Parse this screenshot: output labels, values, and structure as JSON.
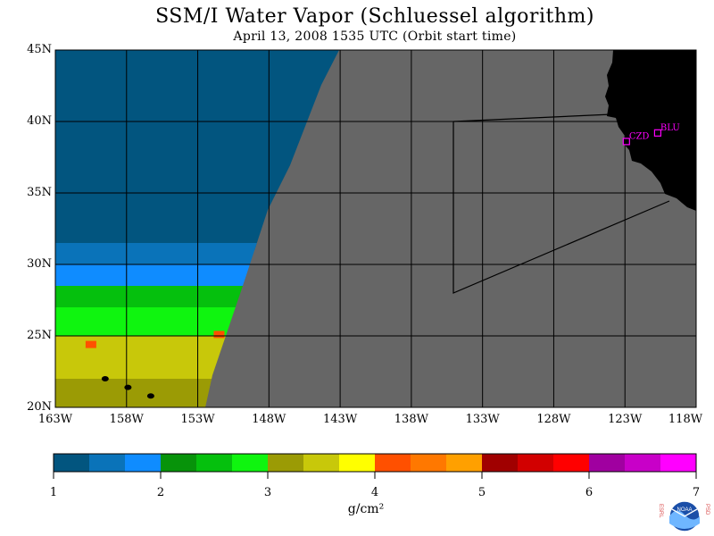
{
  "header": {
    "title": "SSM/I Water Vapor (Schluessel algorithm)",
    "subtitle": "April 13, 2008  1535 UTC  (Orbit start time)"
  },
  "map": {
    "lat_labels": [
      "45N",
      "40N",
      "35N",
      "30N",
      "25N",
      "20N"
    ],
    "lon_labels": [
      "163W",
      "158W",
      "153W",
      "148W",
      "143W",
      "138W",
      "133W",
      "128W",
      "123W",
      "118W"
    ],
    "lat_range": [
      20,
      45
    ],
    "lon_range": [
      -163,
      -118
    ],
    "colors": {
      "no_data": "#666666",
      "land": "#000000",
      "grid": "#000000",
      "station_marker": "#ff00ff"
    },
    "stations": [
      {
        "id": "CZD",
        "lat": 38.6,
        "lon": -122.9
      },
      {
        "id": "BLU",
        "lat": 39.2,
        "lon": -120.7
      }
    ]
  },
  "colorbar": {
    "unit": "g/cm²",
    "ticks": [
      "1",
      "2",
      "3",
      "4",
      "5",
      "6",
      "7"
    ],
    "range": [
      1,
      7
    ],
    "colors": [
      "#02557f",
      "#0a73b9",
      "#0f8cff",
      "#07930a",
      "#05c00d",
      "#0ff50f",
      "#9b9b05",
      "#c8c80a",
      "#ffff00",
      "#ff5000",
      "#ff7800",
      "#ffa000",
      "#a00000",
      "#d20000",
      "#ff0000",
      "#a000a0",
      "#c800c8",
      "#ff00ff"
    ]
  },
  "logo": {
    "name": "NOAA",
    "left_text": "ESRL",
    "right_text": "PSD"
  },
  "chart_data": {
    "type": "heatmap",
    "title": "SSM/I Water Vapor (Schluessel algorithm)",
    "subtitle": "April 13, 2008  1535 UTC  (Orbit start time)",
    "colorbar_label": "g/cm²",
    "value_range": [
      1,
      7
    ],
    "x_ticks": [
      "163W",
      "158W",
      "153W",
      "148W",
      "143W",
      "138W",
      "133W",
      "128W",
      "123W",
      "118W"
    ],
    "y_ticks": [
      "45N",
      "40N",
      "35N",
      "30N",
      "25N",
      "20N"
    ],
    "bands": [
      {
        "lat_range": [
          31,
          45
        ],
        "value": 1.1
      },
      {
        "lat_range": [
          30,
          31.5
        ],
        "value": 1.5
      },
      {
        "lat_range": [
          28.5,
          30
        ],
        "value": 1.8
      },
      {
        "lat_range": [
          27,
          28.5
        ],
        "value": 2.4
      },
      {
        "lat_range": [
          25,
          27
        ],
        "value": 2.9
      },
      {
        "lat_range": [
          22,
          25
        ],
        "value": 3.5
      },
      {
        "lat_range": [
          20,
          22
        ],
        "value": 3.0
      }
    ],
    "max_spots": [
      {
        "lat": 24.4,
        "lon": -160.5,
        "value": 4.1
      },
      {
        "lat": 25.1,
        "lon": -151.5,
        "value": 4.3
      }
    ]
  }
}
